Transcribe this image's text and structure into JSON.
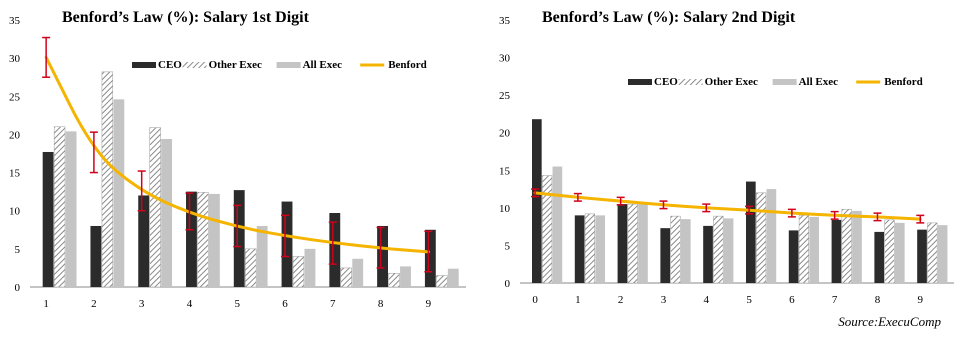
{
  "colors": {
    "ceo": "#2b2b2b",
    "other_exec": "#bdbdbd",
    "all_exec": "#c4c4c4",
    "benford": "#f5b400",
    "error_bar": "#d0021b",
    "axis": "#888888"
  },
  "source": "Source:ExecuComp",
  "chart_data": [
    {
      "type": "bar",
      "title": "Benford’s Law (%): Salary 1st Digit",
      "categories": [
        "1",
        "2",
        "3",
        "4",
        "5",
        "6",
        "7",
        "8",
        "9"
      ],
      "ylim": [
        0,
        35
      ],
      "yticks": [
        0,
        5,
        10,
        15,
        20,
        25,
        30,
        35
      ],
      "legend_placement": "top-right",
      "series": [
        {
          "name": "CEO",
          "values": [
            17.7,
            8.0,
            12.0,
            12.5,
            12.7,
            11.2,
            9.7,
            8.0,
            7.5
          ]
        },
        {
          "name": "Other Exec",
          "values": [
            21.0,
            28.2,
            20.9,
            12.4,
            5.0,
            4.0,
            2.5,
            1.8,
            1.5
          ]
        },
        {
          "name": "All Exec",
          "values": [
            20.4,
            24.6,
            19.4,
            12.2,
            8.0,
            5.0,
            3.7,
            2.7,
            2.4
          ]
        }
      ],
      "line": {
        "name": "Benford",
        "values": [
          30.1,
          17.6,
          12.5,
          9.7,
          7.9,
          6.7,
          5.8,
          5.1,
          4.6
        ]
      },
      "error_bars": {
        "low": [
          27.5,
          15.0,
          10.0,
          7.5,
          5.3,
          4.0,
          3.0,
          2.5,
          2.0
        ],
        "high": [
          32.7,
          20.3,
          15.2,
          12.3,
          10.7,
          9.4,
          8.5,
          7.8,
          7.3
        ]
      }
    },
    {
      "type": "bar",
      "title": "Benford’s Law (%): Salary 2nd Digit",
      "categories": [
        "0",
        "1",
        "2",
        "3",
        "4",
        "5",
        "6",
        "7",
        "8",
        "9"
      ],
      "ylim": [
        0,
        35
      ],
      "yticks": [
        0,
        5,
        10,
        15,
        20,
        25,
        30,
        35
      ],
      "legend_placement": "top-right",
      "series": [
        {
          "name": "CEO",
          "values": [
            21.8,
            9.0,
            10.5,
            7.3,
            7.6,
            13.5,
            7.0,
            8.4,
            6.8,
            7.1
          ]
        },
        {
          "name": "Other Exec",
          "values": [
            14.3,
            9.2,
            10.5,
            8.9,
            8.9,
            12.0,
            9.0,
            9.8,
            8.4,
            8.0
          ]
        },
        {
          "name": "All Exec",
          "values": [
            15.5,
            9.0,
            10.6,
            8.5,
            8.6,
            12.5,
            8.8,
            9.6,
            8.0,
            7.7
          ]
        }
      ],
      "line": {
        "name": "Benford",
        "values": [
          12.0,
          11.4,
          10.9,
          10.4,
          10.0,
          9.7,
          9.3,
          9.0,
          8.8,
          8.5
        ]
      },
      "error_bars": {
        "low": [
          11.5,
          10.9,
          10.4,
          9.9,
          9.5,
          9.2,
          8.8,
          8.5,
          8.3,
          8.0
        ],
        "high": [
          12.5,
          11.9,
          11.4,
          10.9,
          10.5,
          10.2,
          9.8,
          9.5,
          9.3,
          9.0
        ]
      }
    }
  ]
}
